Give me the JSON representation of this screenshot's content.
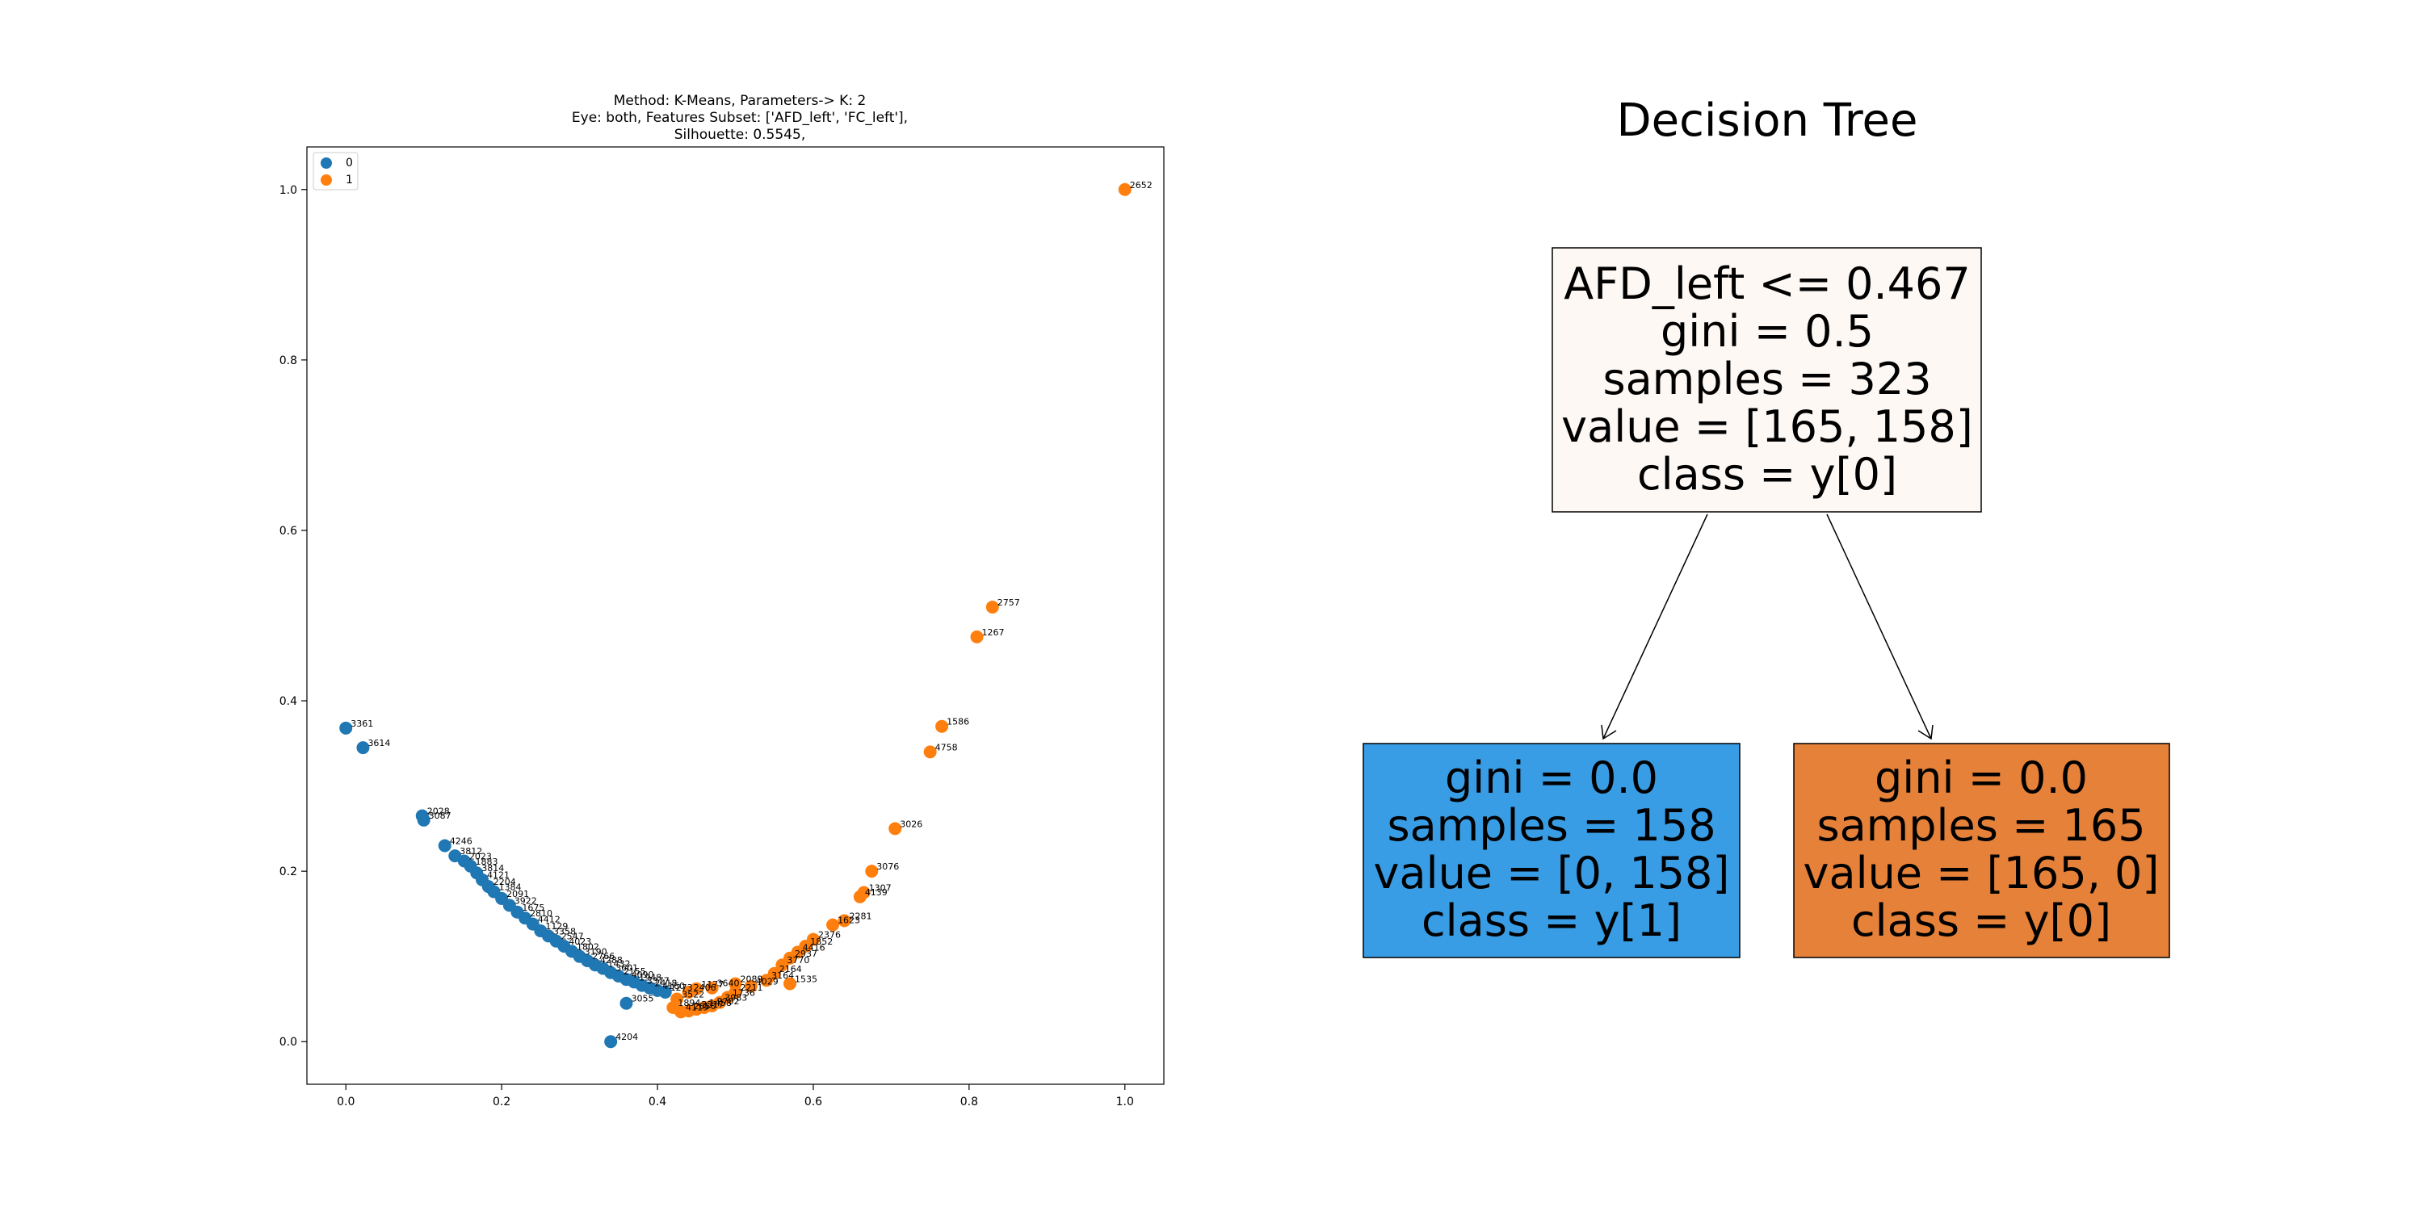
{
  "chart_data": [
    {
      "type": "scatter",
      "title_lines": [
        "Method: K-Means, Parameters-> K: 2",
        "Eye: both, Features Subset: ['AFD_left', 'FC_left'],",
        "Silhouette: 0.5545,"
      ],
      "xlabel": "",
      "ylabel": "",
      "xlim": [
        -0.05,
        1.05
      ],
      "ylim": [
        -0.05,
        1.05
      ],
      "x_ticks": [
        0.0,
        0.2,
        0.4,
        0.6,
        0.8,
        1.0
      ],
      "y_ticks": [
        0.0,
        0.2,
        0.4,
        0.6,
        0.8,
        1.0
      ],
      "tick_labels_x": [
        "0.0",
        "0.2",
        "0.4",
        "0.6",
        "0.8",
        "1.0"
      ],
      "tick_labels_y": [
        "0.0",
        "0.2",
        "0.4",
        "0.6",
        "0.8",
        "1.0"
      ],
      "legend_position": "top-left",
      "legend": [
        {
          "label": "0",
          "color": "#1f77b4"
        },
        {
          "label": "1",
          "color": "#ff7f0e"
        }
      ],
      "series": [
        {
          "name": "0",
          "color": "#1f77b4",
          "points": [
            {
              "x": 0.0,
              "y": 0.368,
              "label": "3361"
            },
            {
              "x": 0.022,
              "y": 0.345,
              "label": "3614"
            },
            {
              "x": 0.098,
              "y": 0.265,
              "label": "2028"
            },
            {
              "x": 0.1,
              "y": 0.26,
              "label": "3087"
            },
            {
              "x": 0.127,
              "y": 0.23,
              "label": "4246"
            },
            {
              "x": 0.14,
              "y": 0.218,
              "label": "3812"
            },
            {
              "x": 0.152,
              "y": 0.212,
              "label": "2023"
            },
            {
              "x": 0.16,
              "y": 0.206,
              "label": "1883"
            },
            {
              "x": 0.168,
              "y": 0.198,
              "label": "3814"
            },
            {
              "x": 0.175,
              "y": 0.19,
              "label": "4121"
            },
            {
              "x": 0.183,
              "y": 0.182,
              "label": "2204"
            },
            {
              "x": 0.19,
              "y": 0.176,
              "label": "1384"
            },
            {
              "x": 0.2,
              "y": 0.168,
              "label": "2091"
            },
            {
              "x": 0.21,
              "y": 0.16,
              "label": "3922"
            },
            {
              "x": 0.22,
              "y": 0.152,
              "label": "1675"
            },
            {
              "x": 0.23,
              "y": 0.145,
              "label": "2810"
            },
            {
              "x": 0.24,
              "y": 0.138,
              "label": "4412"
            },
            {
              "x": 0.25,
              "y": 0.13,
              "label": "1129"
            },
            {
              "x": 0.26,
              "y": 0.124,
              "label": "3358"
            },
            {
              "x": 0.27,
              "y": 0.118,
              "label": "2547"
            },
            {
              "x": 0.28,
              "y": 0.112,
              "label": "4023"
            },
            {
              "x": 0.29,
              "y": 0.106,
              "label": "1802"
            },
            {
              "x": 0.3,
              "y": 0.1,
              "label": "3190"
            },
            {
              "x": 0.31,
              "y": 0.095,
              "label": "2766"
            },
            {
              "x": 0.32,
              "y": 0.09,
              "label": "4288"
            },
            {
              "x": 0.33,
              "y": 0.086,
              "label": "1432"
            },
            {
              "x": 0.34,
              "y": 0.081,
              "label": "3601"
            },
            {
              "x": 0.35,
              "y": 0.077,
              "label": "2155"
            },
            {
              "x": 0.36,
              "y": 0.073,
              "label": "4090"
            },
            {
              "x": 0.37,
              "y": 0.07,
              "label": "1948"
            },
            {
              "x": 0.38,
              "y": 0.066,
              "label": "3377"
            },
            {
              "x": 0.39,
              "y": 0.063,
              "label": "2418"
            },
            {
              "x": 0.4,
              "y": 0.06,
              "label": "4160"
            },
            {
              "x": 0.41,
              "y": 0.058,
              "label": "1273"
            },
            {
              "x": 0.36,
              "y": 0.045,
              "label": "3055"
            },
            {
              "x": 0.34,
              "y": 0.0,
              "label": "4204"
            }
          ]
        },
        {
          "name": "1",
          "color": "#ff7f0e",
          "points": [
            {
              "x": 1.0,
              "y": 1.0,
              "label": "2652"
            },
            {
              "x": 0.83,
              "y": 0.51,
              "label": "2757"
            },
            {
              "x": 0.81,
              "y": 0.475,
              "label": "1267"
            },
            {
              "x": 0.765,
              "y": 0.37,
              "label": "1586"
            },
            {
              "x": 0.75,
              "y": 0.34,
              "label": "4758"
            },
            {
              "x": 0.705,
              "y": 0.25,
              "label": "3026"
            },
            {
              "x": 0.675,
              "y": 0.2,
              "label": "3076"
            },
            {
              "x": 0.665,
              "y": 0.175,
              "label": "1307"
            },
            {
              "x": 0.66,
              "y": 0.17,
              "label": "4139"
            },
            {
              "x": 0.64,
              "y": 0.142,
              "label": "2281"
            },
            {
              "x": 0.625,
              "y": 0.137,
              "label": "1623"
            },
            {
              "x": 0.6,
              "y": 0.12,
              "label": "2376"
            },
            {
              "x": 0.59,
              "y": 0.112,
              "label": "1852"
            },
            {
              "x": 0.58,
              "y": 0.105,
              "label": "4416"
            },
            {
              "x": 0.57,
              "y": 0.098,
              "label": "2937"
            },
            {
              "x": 0.56,
              "y": 0.09,
              "label": "3770"
            },
            {
              "x": 0.55,
              "y": 0.08,
              "label": "2164"
            },
            {
              "x": 0.57,
              "y": 0.068,
              "label": "1535"
            },
            {
              "x": 0.54,
              "y": 0.072,
              "label": "3164"
            },
            {
              "x": 0.52,
              "y": 0.065,
              "label": "4029"
            },
            {
              "x": 0.5,
              "y": 0.058,
              "label": "2211"
            },
            {
              "x": 0.49,
              "y": 0.052,
              "label": "1736"
            },
            {
              "x": 0.48,
              "y": 0.046,
              "label": "3983"
            },
            {
              "x": 0.47,
              "y": 0.042,
              "label": "2702"
            },
            {
              "x": 0.46,
              "y": 0.04,
              "label": "1458"
            },
            {
              "x": 0.45,
              "y": 0.038,
              "label": "3317"
            },
            {
              "x": 0.44,
              "y": 0.036,
              "label": "2650"
            },
            {
              "x": 0.43,
              "y": 0.035,
              "label": "4119"
            },
            {
              "x": 0.42,
              "y": 0.04,
              "label": "1894"
            },
            {
              "x": 0.425,
              "y": 0.05,
              "label": "3522"
            },
            {
              "x": 0.44,
              "y": 0.058,
              "label": "2406"
            },
            {
              "x": 0.45,
              "y": 0.062,
              "label": "1177"
            },
            {
              "x": 0.47,
              "y": 0.063,
              "label": "3640"
            },
            {
              "x": 0.5,
              "y": 0.068,
              "label": "2089"
            }
          ]
        }
      ]
    },
    {
      "type": "table",
      "title": "Decision Tree",
      "nodes": [
        {
          "id": "root",
          "fill": "#fdf8f4",
          "lines": [
            "AFD_left <= 0.467",
            "gini = 0.5",
            "samples = 323",
            "value = [165, 158]",
            "class = y[0]"
          ]
        },
        {
          "id": "left",
          "fill": "#399de5",
          "lines": [
            "gini = 0.0",
            "samples = 158",
            "value = [0, 158]",
            "class = y[1]"
          ]
        },
        {
          "id": "right",
          "fill": "#e58139",
          "lines": [
            "gini = 0.0",
            "samples = 165",
            "value = [165, 0]",
            "class = y[0]"
          ]
        }
      ]
    }
  ]
}
